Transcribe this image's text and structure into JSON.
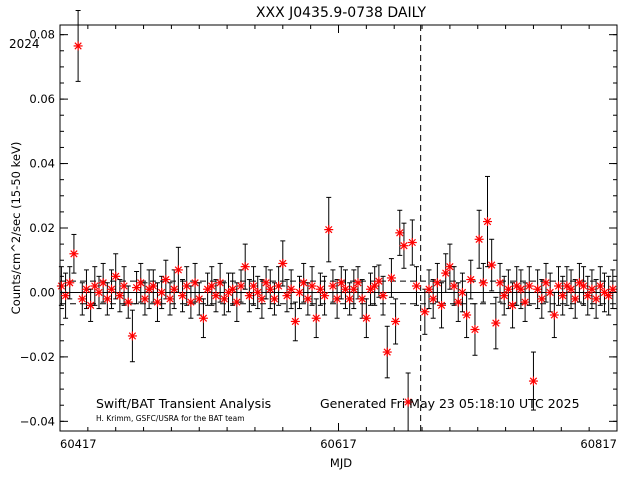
{
  "chart_data": {
    "type": "scatter",
    "title": "XXX J0435.9-0738 DAILY",
    "xlabel": "MJD",
    "ylabel": "Counts/cm^2/sec (15-50 keV)",
    "year_label": "2024",
    "xlim": [
      60417,
      60817
    ],
    "ylim": [
      -0.043,
      0.083
    ],
    "x_ticks": [
      60417,
      60617,
      60817
    ],
    "x_tick_labels": [
      "60417",
      "60617",
      "60817"
    ],
    "y_ticks": [
      -0.04,
      -0.02,
      0.0,
      0.02,
      0.04,
      0.06,
      0.08
    ],
    "y_tick_labels": [
      "−0.04",
      "−0.02",
      "0.00",
      "0.02",
      "0.04",
      "0.06",
      "0.08"
    ],
    "zero_line": 0,
    "dashed_reference_lines": [
      0.0035,
      -0.0035
    ],
    "year_boundary_mjd": 60676,
    "marker_color": "#ff0000",
    "footer_left": "Swift/BAT Transient Analysis",
    "footer_right": "Generated Fri May 23 05:18:10 UTC 2025",
    "credit": "H. Krimm, GSFC/USRA for the BAT team",
    "series": [
      {
        "marker": "asterisk",
        "x": [
          60418,
          60421,
          60424,
          60427,
          60430,
          60433,
          60436,
          60439,
          60442,
          60445,
          60448,
          60451,
          60454,
          60457,
          60460,
          60463,
          60466,
          60469,
          60472,
          60475,
          60478,
          60481,
          60484,
          60487,
          60490,
          60493,
          60496,
          60499,
          60502,
          60505,
          60508,
          60511,
          60514,
          60517,
          60520,
          60523,
          60526,
          60529,
          60532,
          60535,
          60538,
          60541,
          60544,
          60547,
          60550,
          60553,
          60556,
          60559,
          60562,
          60565,
          60568,
          60571,
          60574,
          60577,
          60580,
          60583,
          60586,
          60589,
          60592,
          60595,
          60598,
          60601,
          60604,
          60607,
          60610,
          60613,
          60616,
          60619,
          60622,
          60625,
          60628,
          60631,
          60634,
          60637,
          60640,
          60643,
          60646,
          60649,
          60652,
          60655,
          60658,
          60661,
          60664,
          60667,
          60670,
          60673,
          60679,
          60682,
          60685,
          60688,
          60691,
          60694,
          60697,
          60700,
          60703,
          60706,
          60709,
          60712,
          60715,
          60718,
          60721,
          60724,
          60727,
          60730,
          60733,
          60736,
          60739,
          60742,
          60745,
          60748,
          60751,
          60754,
          60757,
          60760,
          60763,
          60766,
          60769,
          60772,
          60775,
          60778,
          60781,
          60784,
          60787,
          60790,
          60793,
          60796,
          60799,
          60802,
          60805,
          60808,
          60811,
          60814
        ],
        "y": [
          0.002,
          -0.001,
          0.003,
          0.012,
          0.0765,
          -0.002,
          0.001,
          -0.004,
          0.002,
          0.0,
          0.003,
          -0.002,
          0.001,
          0.005,
          -0.001,
          0.002,
          -0.003,
          -0.0135,
          0.0015,
          0.003,
          -0.002,
          0.001,
          0.002,
          -0.003,
          0.0,
          0.004,
          -0.002,
          0.001,
          0.007,
          -0.001,
          0.002,
          -0.003,
          0.003,
          -0.002,
          -0.008,
          0.001,
          0.002,
          -0.001,
          0.003,
          -0.002,
          0.0,
          0.001,
          -0.003,
          0.002,
          0.008,
          -0.001,
          0.002,
          0.0,
          -0.002,
          0.003,
          0.001,
          -0.002,
          0.002,
          0.009,
          -0.001,
          0.001,
          -0.009,
          0.0,
          0.003,
          -0.002,
          0.002,
          -0.008,
          0.001,
          -0.001,
          0.0195,
          0.002,
          -0.002,
          0.003,
          0.001,
          -0.002,
          0.001,
          0.003,
          -0.002,
          -0.008,
          0.001,
          0.002,
          0.0035,
          -0.001,
          -0.0185,
          0.0045,
          -0.009,
          0.0185,
          0.0145,
          -0.034,
          0.0155,
          0.002,
          -0.006,
          0.001,
          -0.002,
          0.003,
          -0.004,
          0.006,
          0.008,
          0.002,
          -0.003,
          0.0,
          -0.007,
          0.004,
          -0.0115,
          0.0165,
          0.003,
          0.022,
          0.0085,
          -0.0095,
          0.003,
          -0.001,
          0.001,
          -0.004,
          0.002,
          0.001,
          -0.003,
          0.002,
          -0.0275,
          0.001,
          -0.002,
          0.003,
          0.0,
          -0.007,
          0.002,
          -0.001,
          0.002,
          0.001,
          -0.002,
          0.003,
          0.002,
          -0.001,
          0.001,
          -0.002,
          0.002,
          0.0,
          -0.001,
          0.001
        ],
        "err": [
          0.006,
          0.007,
          0.005,
          0.006,
          0.011,
          0.005,
          0.006,
          0.005,
          0.006,
          0.005,
          0.006,
          0.005,
          0.006,
          0.007,
          0.005,
          0.006,
          0.005,
          0.008,
          0.005,
          0.006,
          0.005,
          0.006,
          0.005,
          0.006,
          0.005,
          0.006,
          0.005,
          0.006,
          0.007,
          0.005,
          0.006,
          0.005,
          0.006,
          0.005,
          0.006,
          0.005,
          0.006,
          0.005,
          0.006,
          0.005,
          0.006,
          0.005,
          0.006,
          0.005,
          0.007,
          0.005,
          0.006,
          0.005,
          0.006,
          0.005,
          0.006,
          0.005,
          0.006,
          0.007,
          0.005,
          0.006,
          0.006,
          0.005,
          0.006,
          0.005,
          0.006,
          0.006,
          0.005,
          0.006,
          0.01,
          0.005,
          0.006,
          0.005,
          0.006,
          0.005,
          0.006,
          0.005,
          0.006,
          0.006,
          0.005,
          0.006,
          0.005,
          0.006,
          0.008,
          0.006,
          0.007,
          0.007,
          0.007,
          0.009,
          0.007,
          0.006,
          0.007,
          0.006,
          0.006,
          0.006,
          0.007,
          0.006,
          0.007,
          0.006,
          0.006,
          0.006,
          0.007,
          0.006,
          0.008,
          0.009,
          0.006,
          0.014,
          0.008,
          0.008,
          0.006,
          0.006,
          0.006,
          0.007,
          0.006,
          0.006,
          0.006,
          0.006,
          0.009,
          0.006,
          0.006,
          0.006,
          0.006,
          0.007,
          0.006,
          0.006,
          0.006,
          0.006,
          0.006,
          0.006,
          0.006,
          0.006,
          0.006,
          0.006,
          0.006,
          0.006,
          0.006,
          0.006
        ]
      }
    ]
  }
}
